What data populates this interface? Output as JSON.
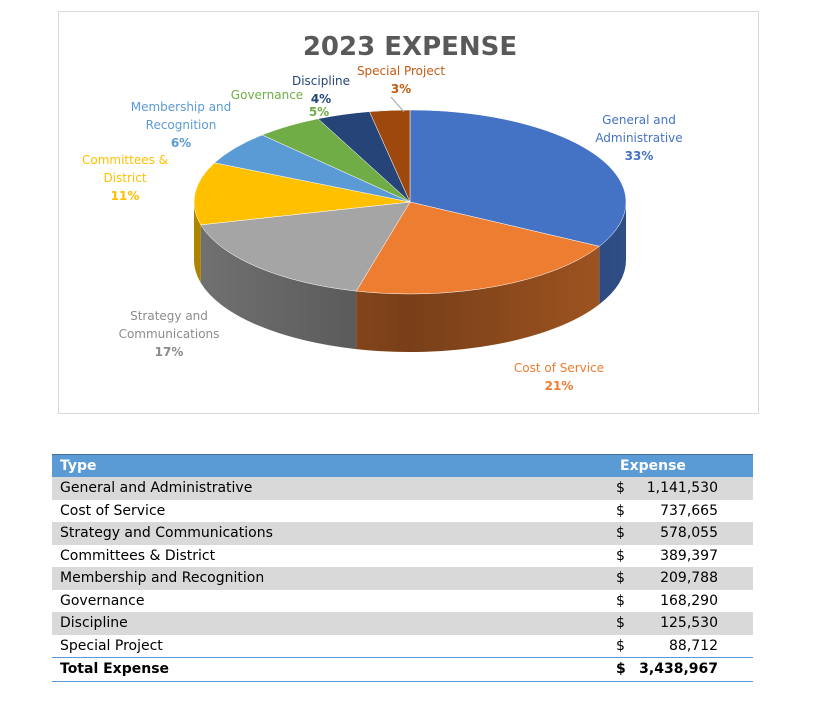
{
  "chart_data": {
    "type": "pie",
    "title": "2023 EXPENSE",
    "slices": [
      {
        "name": "General and Administrative",
        "label_lines": [
          "General and",
          "Administrative"
        ],
        "percent_label": "33%",
        "value": 33,
        "color": "#4472c4",
        "text_color": "#4472c4"
      },
      {
        "name": "Cost of Service",
        "label_lines": [
          "Cost of Service"
        ],
        "percent_label": "21%",
        "value": 21,
        "color": "#ed7d31",
        "text_color": "#ed7d31"
      },
      {
        "name": "Strategy and Communications",
        "label_lines": [
          "Strategy and",
          "Communications"
        ],
        "percent_label": "17%",
        "value": 17,
        "color": "#a5a5a5",
        "text_color": "#8c8c8c"
      },
      {
        "name": "Committees & District",
        "label_lines": [
          "Committees &",
          "District"
        ],
        "percent_label": "11%",
        "value": 11,
        "color": "#ffc000",
        "text_color": "#ffc000"
      },
      {
        "name": "Membership and Recognition",
        "label_lines": [
          "Membership and",
          "Recognition"
        ],
        "percent_label": "6%",
        "value": 6,
        "color": "#5b9bd5",
        "text_color": "#5b9bd5"
      },
      {
        "name": "Governance",
        "label_lines": [
          "Governance"
        ],
        "percent_label": "5%",
        "value": 5,
        "color": "#70ad47",
        "text_color": "#70ad47"
      },
      {
        "name": "Discipline",
        "label_lines": [
          "Discipline"
        ],
        "percent_label": "4%",
        "value": 4,
        "color": "#264478",
        "text_color": "#264478"
      },
      {
        "name": "Special Project",
        "label_lines": [
          "Special Project"
        ],
        "percent_label": "3%",
        "value": 3,
        "color": "#9e480e",
        "text_color": "#c55a11"
      }
    ]
  },
  "table": {
    "headers": {
      "type": "Type",
      "expense": "Expense"
    },
    "currency": "$",
    "rows": [
      {
        "type": "General and Administrative",
        "amount": "1,141,530"
      },
      {
        "type": "Cost of Service",
        "amount": "737,665"
      },
      {
        "type": "Strategy and Communications",
        "amount": "578,055"
      },
      {
        "type": "Committees & District",
        "amount": "389,397"
      },
      {
        "type": "Membership and Recognition",
        "amount": "209,788"
      },
      {
        "type": "Governance",
        "amount": "168,290"
      },
      {
        "type": "Discipline",
        "amount": "125,530"
      },
      {
        "type": "Special Project",
        "amount": "88,712"
      }
    ],
    "total": {
      "type": "Total Expense",
      "amount": "3,438,967"
    }
  }
}
